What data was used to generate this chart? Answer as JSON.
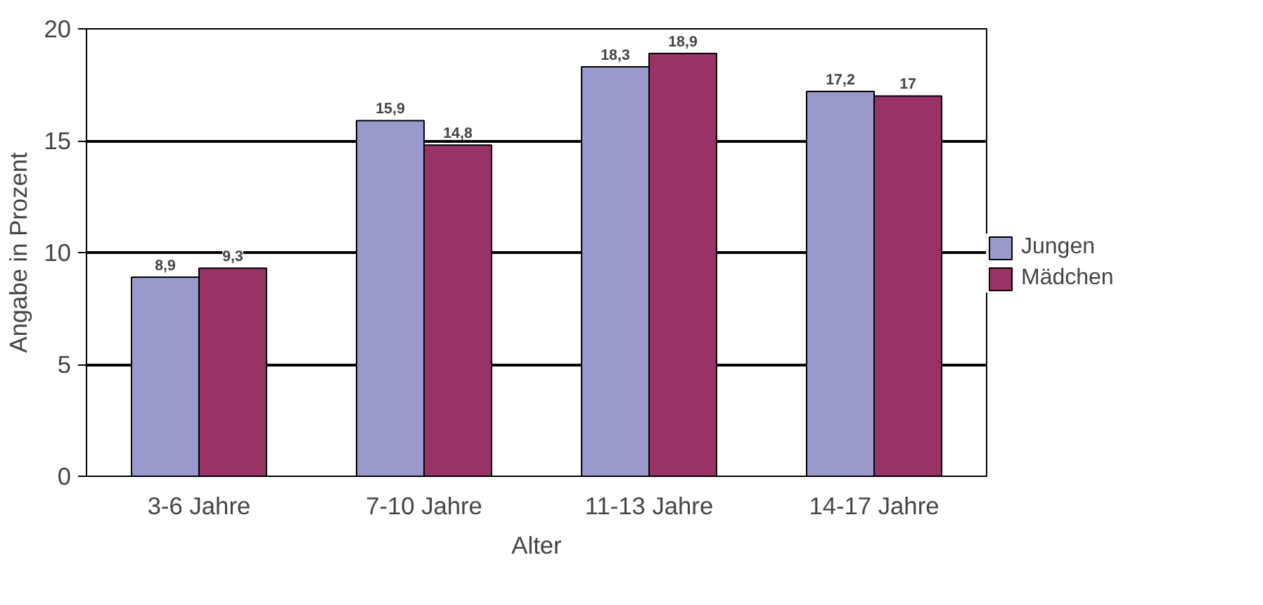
{
  "chart_data": {
    "type": "bar",
    "xlabel": "Alter",
    "ylabel": "Angabe in Prozent",
    "categories": [
      "3-6 Jahre",
      "7-10 Jahre",
      "11-13 Jahre",
      "14-17 Jahre"
    ],
    "series": [
      {
        "name": "Jungen",
        "color": "#9999cc",
        "values": [
          8.9,
          15.9,
          18.3,
          17.2
        ],
        "value_labels": [
          "8,9",
          "15,9",
          "18,3",
          "17,2"
        ]
      },
      {
        "name": "Mädchen",
        "color": "#993366",
        "values": [
          9.3,
          14.8,
          18.9,
          17
        ],
        "value_labels": [
          "9,3",
          "14,8",
          "18,9",
          "17"
        ]
      }
    ],
    "ylim": [
      0,
      20
    ],
    "yticks": [
      0,
      5,
      10,
      15,
      20
    ],
    "grid": "y",
    "legend": "right"
  }
}
